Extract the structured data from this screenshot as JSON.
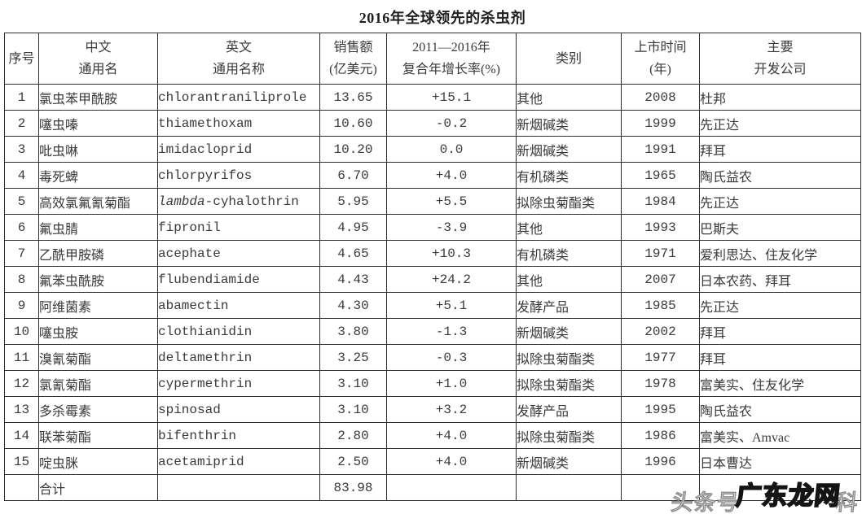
{
  "page": {
    "title": "2016年全球领先的杀虫剂"
  },
  "table": {
    "headers": [
      {
        "line1": "序号",
        "line2": ""
      },
      {
        "line1": "中文",
        "line2": "通用名"
      },
      {
        "line1": "英文",
        "line2": "通用名称"
      },
      {
        "line1": "销售额",
        "line2": "(亿美元)"
      },
      {
        "line1": "2011—2016年",
        "line2": "复合年增长率(%)"
      },
      {
        "line1": "类别",
        "line2": ""
      },
      {
        "line1": "上市时间",
        "line2": "(年)"
      },
      {
        "line1": "主要",
        "line2": "开发公司"
      }
    ],
    "rows": [
      {
        "no": "1",
        "cn": "氯虫苯甲酰胺",
        "en": "chlorantraniliprole",
        "sales": "13.65",
        "cagr": "+15.1",
        "category": "其他",
        "year": "2008",
        "company": "杜邦"
      },
      {
        "no": "2",
        "cn": "噻虫嗪",
        "en": "thiamethoxam",
        "sales": "10.60",
        "cagr": "-0.2",
        "category": "新烟碱类",
        "year": "1999",
        "company": "先正达"
      },
      {
        "no": "3",
        "cn": "吡虫啉",
        "en": "imidacloprid",
        "sales": "10.20",
        "cagr": "0.0",
        "category": "新烟碱类",
        "year": "1991",
        "company": "拜耳"
      },
      {
        "no": "4",
        "cn": "毒死蜱",
        "en": "chlorpyrifos",
        "sales": "6.70",
        "cagr": "+4.0",
        "category": "有机磷类",
        "year": "1965",
        "company": "陶氏益农"
      },
      {
        "no": "5",
        "cn": "高效氯氟氰菊酯",
        "en": "lambda-cyhalothrin",
        "en_italic_prefix": "lambda",
        "sales": "5.95",
        "cagr": "+5.5",
        "category": "拟除虫菊酯类",
        "year": "1984",
        "company": "先正达"
      },
      {
        "no": "6",
        "cn": "氟虫腈",
        "en": "fipronil",
        "sales": "4.95",
        "cagr": "-3.9",
        "category": "其他",
        "year": "1993",
        "company": "巴斯夫"
      },
      {
        "no": "7",
        "cn": "乙酰甲胺磷",
        "en": "acephate",
        "sales": "4.65",
        "cagr": "+10.3",
        "category": "有机磷类",
        "year": "1971",
        "company": "爱利思达、住友化学"
      },
      {
        "no": "8",
        "cn": "氟苯虫酰胺",
        "en": "flubendiamide",
        "sales": "4.43",
        "cagr": "+24.2",
        "category": "其他",
        "year": "2007",
        "company": "日本农药、拜耳"
      },
      {
        "no": "9",
        "cn": "阿维菌素",
        "en": "abamectin",
        "sales": "4.30",
        "cagr": "+5.1",
        "category": "发酵产品",
        "year": "1985",
        "company": "先正达"
      },
      {
        "no": "10",
        "cn": "噻虫胺",
        "en": "clothianidin",
        "sales": "3.80",
        "cagr": "-1.3",
        "category": "新烟碱类",
        "year": "2002",
        "company": "拜耳"
      },
      {
        "no": "11",
        "cn": "溴氰菊酯",
        "en": "deltamethrin",
        "sales": "3.25",
        "cagr": "-0.3",
        "category": "拟除虫菊酯类",
        "year": "1977",
        "company": "拜耳"
      },
      {
        "no": "12",
        "cn": "氯氰菊酯",
        "en": "cypermethrin",
        "sales": "3.10",
        "cagr": "+1.0",
        "category": "拟除虫菊酯类",
        "year": "1978",
        "company": "富美实、住友化学"
      },
      {
        "no": "13",
        "cn": "多杀霉素",
        "en": "spinosad",
        "sales": "3.10",
        "cagr": "+3.2",
        "category": "发酵产品",
        "year": "1995",
        "company": "陶氏益农"
      },
      {
        "no": "14",
        "cn": "联苯菊酯",
        "en": "bifenthrin",
        "sales": "2.80",
        "cagr": "+4.0",
        "category": "拟除虫菊酯类",
        "year": "1986",
        "company": "富美实、Amvac"
      },
      {
        "no": "15",
        "cn": "啶虫脒",
        "en": "acetamiprid",
        "sales": "2.50",
        "cagr": "+4.0",
        "category": "新烟碱类",
        "year": "1996",
        "company": "日本曹达"
      }
    ],
    "total_row": {
      "no": "",
      "cn": "合计",
      "en": "",
      "sales": "83.98",
      "cagr": "",
      "category": "",
      "year": "",
      "company": ""
    }
  },
  "watermark": {
    "gray_left": "头条号",
    "black": "广东龙网",
    "gray_right": "科"
  }
}
